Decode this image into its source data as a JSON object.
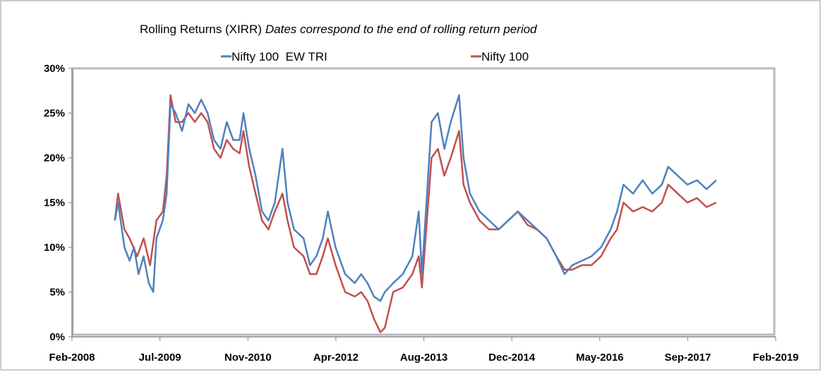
{
  "chart_data": {
    "type": "line",
    "title": "Rolling Returns (XIRR)",
    "subtitle": "Dates correspond to the end of rolling return period",
    "xlabel": "",
    "ylabel": "",
    "xlim": [
      2008.08,
      2019.08
    ],
    "ylim": [
      0,
      30
    ],
    "x_tick_labels": [
      "Feb-2008",
      "Jul-2009",
      "Nov-2010",
      "Apr-2012",
      "Aug-2013",
      "Dec-2014",
      "May-2016",
      "Sep-2017",
      "Feb-2019"
    ],
    "y_tick_labels": [
      "0%",
      "5%",
      "10%",
      "15%",
      "20%",
      "25%",
      "30%"
    ],
    "y_ticks": [
      0,
      5,
      10,
      15,
      20,
      25,
      30
    ],
    "grid": false,
    "legend_position": "top-center",
    "series": [
      {
        "name": "Nifty 100  EW TRI",
        "color": "#4f81bd",
        "points": [
          [
            2008.75,
            13
          ],
          [
            2008.8,
            15
          ],
          [
            2008.9,
            10
          ],
          [
            2008.98,
            8.5
          ],
          [
            2009.05,
            10
          ],
          [
            2009.12,
            7
          ],
          [
            2009.2,
            9
          ],
          [
            2009.28,
            6
          ],
          [
            2009.35,
            5
          ],
          [
            2009.4,
            11
          ],
          [
            2009.5,
            13
          ],
          [
            2009.56,
            16
          ],
          [
            2009.62,
            26
          ],
          [
            2009.7,
            25
          ],
          [
            2009.8,
            23
          ],
          [
            2009.9,
            26
          ],
          [
            2010.0,
            25
          ],
          [
            2010.1,
            26.5
          ],
          [
            2010.2,
            25
          ],
          [
            2010.3,
            22
          ],
          [
            2010.4,
            21
          ],
          [
            2010.5,
            24
          ],
          [
            2010.6,
            22
          ],
          [
            2010.7,
            22
          ],
          [
            2010.76,
            25
          ],
          [
            2010.85,
            21
          ],
          [
            2010.95,
            18
          ],
          [
            2011.05,
            14
          ],
          [
            2011.15,
            13
          ],
          [
            2011.25,
            15
          ],
          [
            2011.37,
            21
          ],
          [
            2011.45,
            15
          ],
          [
            2011.55,
            12
          ],
          [
            2011.7,
            11
          ],
          [
            2011.8,
            8
          ],
          [
            2011.9,
            9
          ],
          [
            2012.0,
            11
          ],
          [
            2012.08,
            14
          ],
          [
            2012.2,
            10
          ],
          [
            2012.35,
            7
          ],
          [
            2012.5,
            6
          ],
          [
            2012.6,
            7
          ],
          [
            2012.7,
            6
          ],
          [
            2012.8,
            4.5
          ],
          [
            2012.9,
            4
          ],
          [
            2012.97,
            5
          ],
          [
            2013.1,
            6
          ],
          [
            2013.25,
            7
          ],
          [
            2013.4,
            9
          ],
          [
            2013.5,
            14
          ],
          [
            2013.55,
            7
          ],
          [
            2013.7,
            24
          ],
          [
            2013.8,
            25
          ],
          [
            2013.9,
            21
          ],
          [
            2014.0,
            24
          ],
          [
            2014.13,
            27
          ],
          [
            2014.2,
            20
          ],
          [
            2014.3,
            16
          ],
          [
            2014.45,
            14
          ],
          [
            2014.6,
            13
          ],
          [
            2014.75,
            12
          ],
          [
            2014.9,
            13
          ],
          [
            2015.05,
            14
          ],
          [
            2015.2,
            13
          ],
          [
            2015.35,
            12
          ],
          [
            2015.5,
            11
          ],
          [
            2015.65,
            9
          ],
          [
            2015.78,
            7
          ],
          [
            2015.9,
            8
          ],
          [
            2016.05,
            8.5
          ],
          [
            2016.2,
            9
          ],
          [
            2016.35,
            10
          ],
          [
            2016.5,
            12
          ],
          [
            2016.6,
            14
          ],
          [
            2016.7,
            17
          ],
          [
            2016.85,
            16
          ],
          [
            2017.0,
            17.5
          ],
          [
            2017.15,
            16
          ],
          [
            2017.3,
            17
          ],
          [
            2017.4,
            19
          ],
          [
            2017.55,
            18
          ],
          [
            2017.7,
            17
          ],
          [
            2017.85,
            17.5
          ],
          [
            2018.0,
            16.5
          ],
          [
            2018.15,
            17.5
          ]
        ]
      },
      {
        "name": "Nifty 100",
        "color": "#c0504d",
        "points": [
          [
            2008.75,
            13
          ],
          [
            2008.8,
            16
          ],
          [
            2008.9,
            12
          ],
          [
            2008.98,
            11
          ],
          [
            2009.1,
            9
          ],
          [
            2009.2,
            11
          ],
          [
            2009.3,
            8
          ],
          [
            2009.4,
            13
          ],
          [
            2009.5,
            14
          ],
          [
            2009.56,
            18
          ],
          [
            2009.62,
            27
          ],
          [
            2009.7,
            24
          ],
          [
            2009.8,
            24
          ],
          [
            2009.9,
            25
          ],
          [
            2010.0,
            24
          ],
          [
            2010.1,
            25
          ],
          [
            2010.2,
            24
          ],
          [
            2010.3,
            21
          ],
          [
            2010.4,
            20
          ],
          [
            2010.5,
            22
          ],
          [
            2010.6,
            21
          ],
          [
            2010.7,
            20.5
          ],
          [
            2010.76,
            23
          ],
          [
            2010.85,
            19
          ],
          [
            2010.95,
            16
          ],
          [
            2011.05,
            13
          ],
          [
            2011.15,
            12
          ],
          [
            2011.25,
            14
          ],
          [
            2011.37,
            16
          ],
          [
            2011.45,
            13
          ],
          [
            2011.55,
            10
          ],
          [
            2011.7,
            9
          ],
          [
            2011.8,
            7
          ],
          [
            2011.9,
            7
          ],
          [
            2012.0,
            9
          ],
          [
            2012.08,
            11
          ],
          [
            2012.2,
            8
          ],
          [
            2012.35,
            5
          ],
          [
            2012.5,
            4.5
          ],
          [
            2012.6,
            5
          ],
          [
            2012.7,
            4
          ],
          [
            2012.8,
            2
          ],
          [
            2012.9,
            0.5
          ],
          [
            2012.97,
            1
          ],
          [
            2013.1,
            5
          ],
          [
            2013.25,
            5.5
          ],
          [
            2013.4,
            7
          ],
          [
            2013.5,
            9
          ],
          [
            2013.55,
            5.5
          ],
          [
            2013.7,
            20
          ],
          [
            2013.8,
            21
          ],
          [
            2013.9,
            18
          ],
          [
            2014.0,
            20
          ],
          [
            2014.13,
            23
          ],
          [
            2014.2,
            17
          ],
          [
            2014.3,
            15
          ],
          [
            2014.45,
            13
          ],
          [
            2014.6,
            12
          ],
          [
            2014.75,
            12
          ],
          [
            2014.9,
            13
          ],
          [
            2015.05,
            14
          ],
          [
            2015.2,
            12.5
          ],
          [
            2015.35,
            12
          ],
          [
            2015.5,
            11
          ],
          [
            2015.65,
            9
          ],
          [
            2015.78,
            7.5
          ],
          [
            2015.9,
            7.5
          ],
          [
            2016.05,
            8
          ],
          [
            2016.2,
            8
          ],
          [
            2016.35,
            9
          ],
          [
            2016.5,
            11
          ],
          [
            2016.6,
            12
          ],
          [
            2016.7,
            15
          ],
          [
            2016.85,
            14
          ],
          [
            2017.0,
            14.5
          ],
          [
            2017.15,
            14
          ],
          [
            2017.3,
            15
          ],
          [
            2017.4,
            17
          ],
          [
            2017.55,
            16
          ],
          [
            2017.7,
            15
          ],
          [
            2017.85,
            15.5
          ],
          [
            2018.0,
            14.5
          ],
          [
            2018.15,
            15
          ]
        ]
      }
    ]
  }
}
